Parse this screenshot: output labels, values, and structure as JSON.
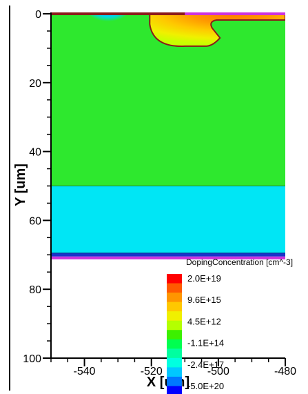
{
  "chart_data": {
    "type": "heatmap",
    "xlabel": "X [um]",
    "ylabel": "Y [um]",
    "xlim": [
      -550,
      -480
    ],
    "ylim": [
      0,
      100
    ],
    "y_inverted": true,
    "x_ticks": [
      "-540",
      "-520",
      "-500",
      "-480"
    ],
    "x_tick_values": [
      -540,
      -520,
      -500,
      -480
    ],
    "y_ticks": [
      "0",
      "20",
      "40",
      "60",
      "80",
      "100"
    ],
    "y_tick_values": [
      0,
      20,
      40,
      60,
      80,
      100
    ],
    "grid": false,
    "legend_placement": "bottom-right",
    "legend": {
      "title": "DopingConcentration [cm^-3]",
      "entries": [
        "2.0E+19",
        "9.6E+15",
        "4.5E+12",
        "-1.1E+14",
        "-2.4E+17",
        "-5.0E+20"
      ],
      "colors": [
        "#ff0000",
        "#ff5a00",
        "#ff9600",
        "#ffc800",
        "#f0f000",
        "#b4ff00",
        "#3cf000",
        "#00ff50",
        "#00ffa0",
        "#00ffe0",
        "#00c8ff",
        "#0078ff",
        "#0000ff"
      ]
    },
    "regions": [
      {
        "name": "bulk",
        "x": [
          -550,
          -480
        ],
        "y": [
          0,
          50
        ],
        "doping": "4.5E+12",
        "color": "#2ee82e"
      },
      {
        "name": "substrate",
        "x": [
          -550,
          -480
        ],
        "y": [
          50,
          69.5
        ],
        "doping": "-1.1E+14",
        "color": "#00e6f5"
      },
      {
        "name": "back-contact-layer",
        "x": [
          -550,
          -480
        ],
        "y": [
          69.5,
          70.5
        ],
        "doping": "-5.0E+20",
        "color": "#1a33cc"
      },
      {
        "name": "left-implant",
        "x_center": -533,
        "y_depth": 4,
        "doping": "-2.4E+17",
        "color": "#22aaff"
      },
      {
        "name": "right-well",
        "x": [
          -520,
          -480
        ],
        "y": [
          0,
          9
        ],
        "doping": "9.6E+15",
        "color": "#ff9900"
      },
      {
        "name": "top-contact",
        "x": [
          -510,
          -480
        ],
        "y": [
          0,
          0.8
        ],
        "color": "#cc33dd"
      },
      {
        "name": "bottom-contact",
        "x": [
          -550,
          -480
        ],
        "y": [
          70.5,
          71.3
        ],
        "color": "#cc33dd"
      }
    ]
  },
  "colors": {
    "contact": "#cc33dd",
    "junction": "#8b1a1a",
    "bulk": "#2ee82e",
    "substrate": "#00e6f5"
  }
}
